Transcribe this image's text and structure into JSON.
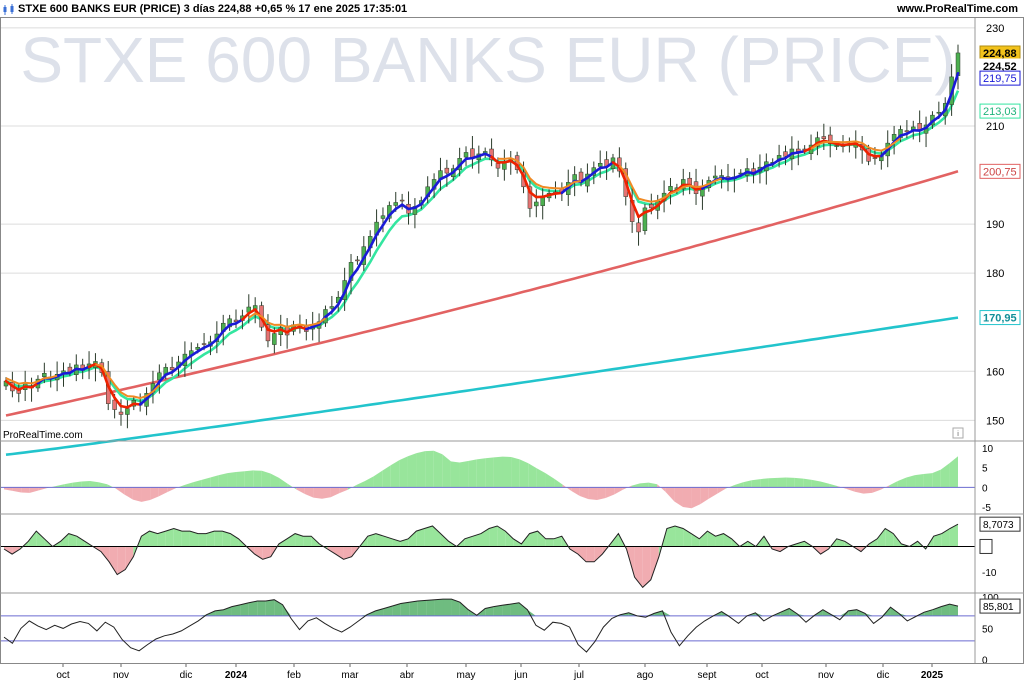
{
  "header": {
    "title": "STXE 600 BANKS EUR (PRICE) 3 días 224,88 +0,65 % 17 ene 2025 17:35:01",
    "site": "www.ProRealTime.com"
  },
  "watermark": "STXE 600 BANKS EUR (PRICE)",
  "brand": "ProRealTime.com",
  "colors": {
    "candle_up": "#4caf50",
    "candle_down": "#e57373",
    "ma_fast_up": "#1a1ad6",
    "ma_fast_down": "#ee2200",
    "ma_mid": "#33e6a0",
    "ma_100": "#e26262",
    "ma_200": "#22c4cc",
    "pos_fill": "#86e08a",
    "neg_fill": "#ee9da3",
    "grid": "#dcdcdc",
    "band": "#6b6bd0"
  },
  "chart_data": [
    {
      "type": "candlestick",
      "title": "STXE 600 BANKS EUR (PRICE)",
      "timeframe": "3 días",
      "last": 224.88,
      "change_pct": 0.65,
      "datetime": "17 ene 2025 17:35:01",
      "ylim": [
        146,
        232
      ],
      "yticks": [
        150,
        160,
        180,
        190,
        210,
        230
      ],
      "price_labels": [
        {
          "label": "224,88",
          "value": 224.88,
          "style": "last"
        },
        {
          "label": "224,52",
          "value": 224.52,
          "style": "plain"
        },
        {
          "label": "219,75",
          "value": 219.75,
          "style": "ma_fast"
        },
        {
          "label": "213,03",
          "value": 213.03,
          "style": "ma_mid"
        },
        {
          "label": "200,75",
          "value": 200.75,
          "style": "ma_100"
        },
        {
          "label": "170,95",
          "value": 170.95,
          "style": "ma_200"
        }
      ],
      "x_labels": [
        "oct",
        "nov",
        "dic",
        "2024",
        "feb",
        "mar",
        "abr",
        "may",
        "jun",
        "jul",
        "ago",
        "sept",
        "oct",
        "nov",
        "dic",
        "2025"
      ],
      "closes": [
        158,
        156,
        155.5,
        157.5,
        156.6,
        158.4,
        159.6,
        158.5,
        159.4,
        160.1,
        159.8,
        161.3,
        160.2,
        161.5,
        162,
        159.7,
        153.4,
        152.2,
        151.2,
        152.4,
        154.1,
        153.1,
        155.5,
        157.5,
        159.7,
        160.8,
        160.3,
        161.9,
        163.5,
        164.2,
        164.9,
        165.6,
        166,
        167.6,
        169.8,
        170.7,
        170.1,
        171.3,
        173.1,
        173.4,
        169,
        166.2,
        167.7,
        168.9,
        167.4,
        169.5,
        169.4,
        168.1,
        169.5,
        170.1,
        172.6,
        173.2,
        175.1,
        178.5,
        182.2,
        182.5,
        185.4,
        187.5,
        190.4,
        191.7,
        193.8,
        194.4,
        194.8,
        192.2,
        193.6,
        194.8,
        197.6,
        199.1,
        200.9,
        200.4,
        201.3,
        203.4,
        204.6,
        203.6,
        204.3,
        204.8,
        203.1,
        201.4,
        202.6,
        203.2,
        201.1,
        197.6,
        193.2,
        194.5,
        195.6,
        196.3,
        196.5,
        196.5,
        198.5,
        200.1,
        198.5,
        200.2,
        201.5,
        202.4,
        201.8,
        203.5,
        200.8,
        195.6,
        190.5,
        188.4,
        193.3,
        193.3,
        194.7,
        196.3,
        197.7,
        197.4,
        199.1,
        197.9,
        196.2,
        197.4,
        198.9,
        199.8,
        199.9,
        199,
        199.6,
        200.4,
        201.3,
        200.1,
        201.6,
        202.7,
        202.6,
        204,
        203.8,
        205.3,
        204.8,
        205.1,
        206.1,
        207.6,
        207.4,
        206.4,
        206,
        205.9,
        206.4,
        206.5,
        205.1,
        202.8,
        203.4,
        203.9,
        206.5,
        208.3,
        209.3,
        208.8,
        209.8,
        209,
        210.2,
        212.2,
        212.8,
        214.6,
        220,
        224.88
      ],
      "fast_ma_down_ranges": [
        [
          0,
          5
        ],
        [
          14,
          21
        ],
        [
          38,
          47
        ],
        [
          77,
          87
        ],
        [
          96,
          109
        ],
        [
          126,
          137
        ]
      ]
    },
    {
      "type": "area",
      "name": "Indicator 1",
      "ylim": [
        -6,
        11
      ],
      "yticks": [
        10,
        5,
        0,
        -5
      ],
      "baseline": 0,
      "values": [
        -0.5,
        -0.9,
        -1.3,
        -1.4,
        -0.8,
        -0.2,
        0.3,
        0.8,
        1.2,
        1.5,
        1.6,
        1.3,
        0.8,
        -0.3,
        -1.8,
        -3.1,
        -3.7,
        -3.2,
        -2.3,
        -1.2,
        -0.2,
        0.6,
        1.3,
        1.9,
        2.5,
        3.1,
        3.6,
        3.9,
        4.1,
        4.3,
        4.2,
        3.5,
        2.4,
        0.9,
        -0.5,
        -1.7,
        -2.6,
        -2.9,
        -2.5,
        -1.5,
        -0.6,
        0.6,
        1.6,
        2.8,
        4.2,
        5.6,
        6.9,
        7.9,
        8.7,
        9.2,
        9.3,
        8.4,
        6.6,
        6.3,
        6.7,
        7.1,
        7.4,
        7.6,
        7.8,
        7.7,
        7.1,
        6.1,
        4.8,
        3.6,
        2.2,
        0.7,
        -0.9,
        -2.2,
        -3.0,
        -3.2,
        -2.7,
        -1.8,
        -0.6,
        0.4,
        1.0,
        1.2,
        0.8,
        -1.2,
        -3.6,
        -5.0,
        -5.3,
        -4.3,
        -2.9,
        -1.6,
        -0.3,
        0.6,
        1.3,
        1.8,
        2.1,
        2.3,
        2.4,
        2.5,
        2.4,
        2.2,
        1.9,
        1.5,
        0.9,
        0.3,
        -0.4,
        -1.1,
        -1.6,
        -1.4,
        -0.6,
        0.5,
        1.6,
        2.5,
        3.1,
        3.4,
        3.6,
        4.5,
        6.1,
        7.9
      ]
    },
    {
      "type": "area",
      "name": "Indicator 2",
      "ylim": [
        -17,
        11.5
      ],
      "yticks": [
        0,
        -10
      ],
      "baseline": 0,
      "last_label": "8,7073",
      "values": [
        -1,
        -3,
        -1,
        2,
        6,
        3,
        0,
        2,
        5,
        4,
        2,
        0,
        -2,
        -6,
        -11,
        -9,
        -4,
        4,
        6,
        5,
        6,
        7,
        6,
        6,
        5,
        5,
        6,
        6,
        5,
        3,
        0,
        -3,
        -5,
        -4,
        1,
        3,
        5,
        4,
        4,
        1,
        -1,
        -3,
        -5,
        -4,
        0,
        4,
        5,
        4,
        3,
        2,
        3,
        6,
        7,
        8,
        5,
        2,
        0,
        3,
        4,
        5,
        7,
        8,
        6,
        3,
        1,
        5,
        6,
        3,
        3,
        4,
        -1,
        -3,
        -6,
        -6,
        -3,
        1,
        5,
        -1,
        -12,
        -16,
        -13,
        -4,
        7,
        8,
        7,
        5,
        3,
        6,
        4,
        5,
        3,
        0,
        2,
        0,
        4,
        -1,
        -2,
        0,
        1,
        2,
        0,
        -3,
        -1,
        3,
        2,
        0,
        -2,
        1,
        3,
        7,
        5,
        1,
        0,
        2,
        -1,
        4,
        5,
        7,
        8.7
      ]
    },
    {
      "type": "line",
      "name": "Indicator 3",
      "ylim": [
        -4,
        102
      ],
      "yticks": [
        100,
        50,
        0
      ],
      "bands": [
        70,
        30
      ],
      "last_label": "85,801",
      "values": [
        36,
        26,
        50,
        62,
        54,
        48,
        55,
        50,
        57,
        61,
        58,
        46,
        60,
        52,
        32,
        19,
        14,
        24,
        33,
        38,
        41,
        46,
        54,
        62,
        72,
        78,
        80,
        85,
        88,
        91,
        94,
        94,
        96,
        88,
        66,
        48,
        62,
        67,
        58,
        50,
        44,
        52,
        62,
        72,
        78,
        82,
        86,
        90,
        92,
        94,
        95,
        96,
        97,
        97,
        92,
        80,
        71,
        82,
        85,
        87,
        89,
        91,
        80,
        55,
        47,
        60,
        58,
        52,
        24,
        12,
        29,
        52,
        66,
        72,
        75,
        70,
        68,
        74,
        78,
        44,
        22,
        38,
        52,
        62,
        70,
        77,
        68,
        58,
        70,
        75,
        62,
        70,
        76,
        82,
        73,
        60,
        71,
        80,
        72,
        64,
        78,
        80,
        74,
        58,
        68,
        84,
        74,
        62,
        69,
        76,
        80,
        85,
        89,
        85.8
      ]
    }
  ]
}
